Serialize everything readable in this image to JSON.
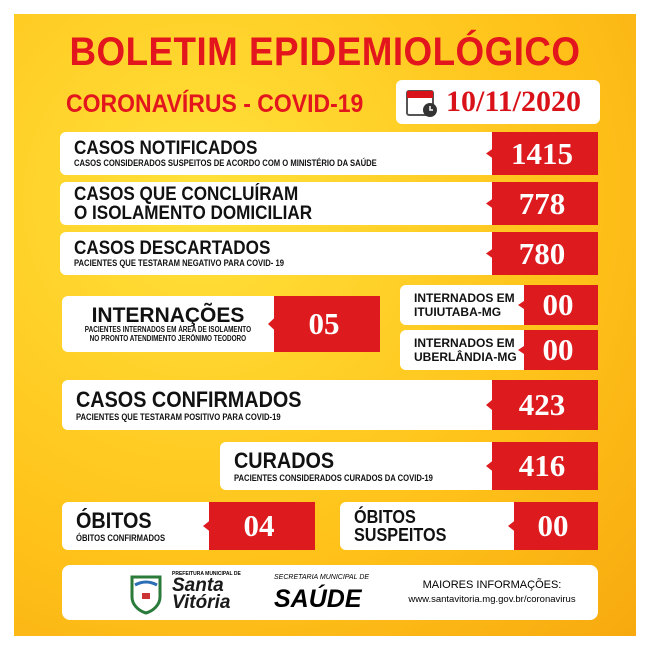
{
  "header": {
    "title": "BOLETIM EPIDEMIOLÓGICO",
    "subtitle": "CORONAVÍRUS - COVID-19",
    "date": "10/11/2020"
  },
  "stats": {
    "notificados": {
      "title": "CASOS NOTIFICADOS",
      "desc": "CASOS CONSIDERADOS SUSPEITOS DE ACORDO COM O MINISTÉRIO DA SAÚDE",
      "value": "1415"
    },
    "isolamento": {
      "title1": "CASOS QUE CONCLUÍRAM",
      "title2": "O ISOLAMENTO DOMICILIAR",
      "value": "778"
    },
    "descartados": {
      "title": "CASOS DESCARTADOS",
      "desc": "PACIENTES QUE TESTARAM NEGATIVO PARA COVID- 19",
      "value": "780"
    },
    "internacoes": {
      "title": "INTERNAÇÕES",
      "desc1": "PACIENTES INTERNADOS EM ÁREA DE ISOLAMENTO",
      "desc2": "NO PRONTO ATENDIMENTO JERÔNIMO TEODORO",
      "value": "05"
    },
    "ituiutaba": {
      "title1": "INTERNADOS EM",
      "title2": "ITUIUTABA-MG",
      "value": "00"
    },
    "uberlandia": {
      "title1": "INTERNADOS EM",
      "title2": "UBERLÂNDIA-MG",
      "value": "00"
    },
    "confirmados": {
      "title": "CASOS CONFIRMADOS",
      "desc": "PACIENTES QUE TESTARAM POSITIVO PARA COVID-19",
      "value": "423"
    },
    "curados": {
      "title": "CURADOS",
      "desc": "PACIENTES CONSIDERADOS CURADOS DA COVID-19",
      "value": "416"
    },
    "obitos": {
      "title": "ÓBITOS",
      "desc": "ÓBITOS CONFIRMADOS",
      "value": "04"
    },
    "suspeitos": {
      "title1": "ÓBITOS",
      "title2": "SUSPEITOS",
      "value": "00"
    }
  },
  "footer": {
    "prefeitura": "PREFEITURA MUNICIPAL DE",
    "city1": "Santa",
    "city2": "Vitória",
    "secretaria": "SECRETARIA MUNICIPAL DE",
    "saude": "SAÚDE",
    "info": "MAIORES INFORMAÇÕES:",
    "url": "www.santavitoria.mg.gov.br/coronavirus"
  },
  "colors": {
    "red": "#dd1a1e",
    "yellow": "#ffc21a"
  }
}
